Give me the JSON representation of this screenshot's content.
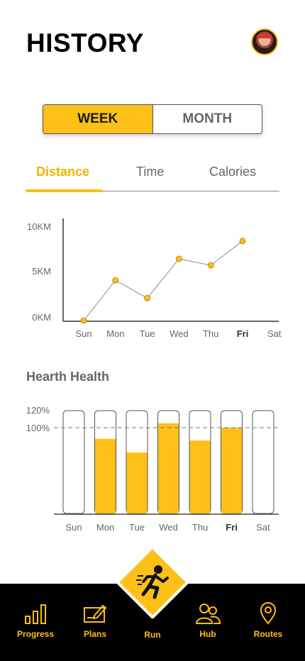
{
  "header": {
    "title": "HISTORY"
  },
  "segment": {
    "options": [
      "WEEK",
      "MONTH"
    ],
    "selected": "WEEK"
  },
  "tabs": {
    "items": [
      "Distance",
      "Time",
      "Calories"
    ],
    "selected": "Distance"
  },
  "colors": {
    "accent": "#fdc016",
    "text_dark": "#111111",
    "text_muted": "#666666",
    "nav_bg": "#000000"
  },
  "chart_data": [
    {
      "type": "line",
      "categories": [
        "Sun",
        "Mon",
        "Tue",
        "Wed",
        "Thu",
        "Fri",
        "Sat"
      ],
      "highlight": "Fri",
      "values": [
        0,
        4.3,
        2.4,
        6.6,
        5.9,
        8.5,
        null
      ],
      "yticks": [
        "10KM",
        "5KM",
        "0KM"
      ],
      "ylim": [
        0,
        10
      ],
      "grid": false
    },
    {
      "type": "bar",
      "title": "Hearth Health",
      "categories": [
        "Sun",
        "Mon",
        "Tue",
        "Wed",
        "Thu",
        "Fri",
        "Sat"
      ],
      "highlight": "Fri",
      "values": [
        0,
        87,
        71,
        105,
        85,
        100,
        0
      ],
      "yticks": [
        "120%",
        "100%"
      ],
      "ylim": [
        0,
        120
      ],
      "reference_line": 100
    }
  ],
  "nav": {
    "items": [
      {
        "label": "Progress",
        "icon": "bar-chart-icon"
      },
      {
        "label": "Plans",
        "icon": "edit-card-icon"
      },
      {
        "label": "Run",
        "icon": "running-person-icon"
      },
      {
        "label": "Hub",
        "icon": "users-icon"
      },
      {
        "label": "Routes",
        "icon": "map-pin-icon"
      }
    ]
  }
}
